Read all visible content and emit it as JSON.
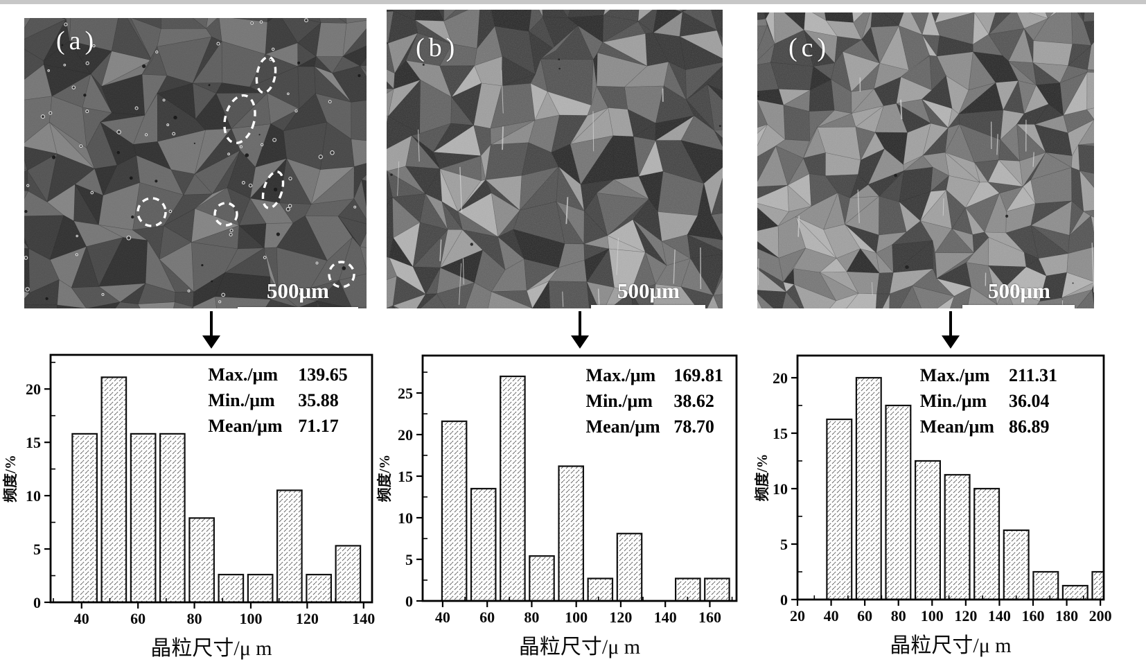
{
  "figure": {
    "panels": [
      {
        "id": "a",
        "label": "(a)",
        "scale_bar_text": "500μm",
        "annotation_icon": "dashed-ellipse-highlights",
        "annotation_color": "#ffffff"
      },
      {
        "id": "b",
        "label": "(b)",
        "scale_bar_text": "500μm"
      },
      {
        "id": "c",
        "label": "(c)",
        "scale_bar_text": "500μm"
      }
    ]
  },
  "chart_data": [
    {
      "type": "bar",
      "panel": "a",
      "xlabel": "晶粒尺寸/μ m",
      "ylabel": "频度/%",
      "stats": [
        {
          "label": "Max./μm",
          "value": "139.65"
        },
        {
          "label": "Min./μm",
          "value": "35.88"
        },
        {
          "label": "Mean/μm",
          "value": "71.17"
        }
      ],
      "bin_start": 35.88,
      "bin_width": 10.38,
      "values": [
        15.8,
        21.1,
        15.8,
        15.8,
        7.9,
        2.6,
        2.6,
        10.5,
        2.6,
        5.3
      ],
      "xticks": [
        40,
        60,
        80,
        100,
        120,
        140
      ],
      "yticks": [
        0,
        5,
        10,
        15,
        20
      ],
      "xlim": [
        29,
        143
      ],
      "ylim": [
        0,
        23.2
      ],
      "x_minor_step": 10,
      "y_minor_step": 2.5,
      "grid": false,
      "legend": "none",
      "bar_fill": "hatched-white",
      "line_color": "#111111"
    },
    {
      "type": "bar",
      "panel": "b",
      "xlabel": "晶粒尺寸/μ m",
      "ylabel": "频度/%",
      "stats": [
        {
          "label": "Max./μm",
          "value": "169.81"
        },
        {
          "label": "Min./μm",
          "value": "38.62"
        },
        {
          "label": "Mean/μm",
          "value": "78.70"
        }
      ],
      "bin_start": 38.62,
      "bin_width": 13.12,
      "values": [
        21.6,
        13.5,
        27.0,
        5.4,
        16.2,
        2.7,
        8.1,
        0,
        2.7,
        2.7
      ],
      "xticks": [
        40,
        60,
        80,
        100,
        120,
        140,
        160
      ],
      "yticks": [
        0,
        5,
        10,
        15,
        20,
        25
      ],
      "xlim": [
        31,
        172
      ],
      "ylim": [
        0,
        29.5
      ],
      "x_minor_step": 10,
      "y_minor_step": 2.5,
      "grid": false,
      "legend": "none",
      "bar_fill": "hatched-white",
      "line_color": "#111111"
    },
    {
      "type": "bar",
      "panel": "c",
      "xlabel": "晶粒尺寸/μ m",
      "ylabel": "频度/%",
      "stats": [
        {
          "label": "Max./μm",
          "value": "211.31"
        },
        {
          "label": "Min./μm",
          "value": "36.04"
        },
        {
          "label": "Mean/μm",
          "value": "86.89"
        }
      ],
      "bin_start": 36.04,
      "bin_width": 17.53,
      "values": [
        16.25,
        20.0,
        17.5,
        12.5,
        11.25,
        10.0,
        6.25,
        2.5,
        1.25,
        2.5
      ],
      "xticks": [
        20,
        40,
        60,
        80,
        100,
        120,
        140,
        160,
        180,
        200
      ],
      "yticks": [
        0,
        5,
        10,
        15,
        20
      ],
      "xlim": [
        20,
        202
      ],
      "ylim": [
        0,
        22
      ],
      "x_minor_step": 10,
      "y_minor_step": 2.5,
      "grid": false,
      "legend": "none",
      "bar_fill": "hatched-white",
      "line_color": "#111111"
    }
  ]
}
